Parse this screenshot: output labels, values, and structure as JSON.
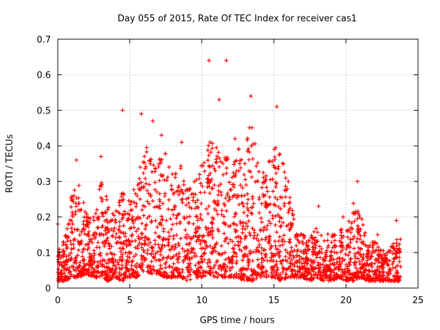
{
  "chart_data": {
    "type": "scatter",
    "title": "Day 055 of 2015, Rate Of TEC Index for receiver cas1",
    "xlabel": "GPS time / hours",
    "ylabel": "ROTI / TECUs",
    "xlim": [
      0,
      25
    ],
    "ylim": [
      0,
      0.7
    ],
    "xticks": [
      0,
      5,
      10,
      15,
      20,
      25
    ],
    "yticks": [
      0,
      0.1,
      0.2,
      0.3,
      0.4,
      0.5,
      0.6,
      0.7
    ],
    "xtick_labels": [
      "0",
      "5",
      "10",
      "15",
      "20",
      "25"
    ],
    "ytick_labels": [
      "0",
      "0.1",
      "0.2",
      "0.3",
      "0.4",
      "0.5",
      "0.6",
      "0.7"
    ],
    "grid": true,
    "marker": "+",
    "series_color": "#ff0000",
    "x_range_data": [
      0,
      23.8
    ],
    "notable_points": [
      {
        "x": 0.0,
        "y": 0.18
      },
      {
        "x": 1.3,
        "y": 0.36
      },
      {
        "x": 3.0,
        "y": 0.37
      },
      {
        "x": 4.5,
        "y": 0.5
      },
      {
        "x": 5.8,
        "y": 0.49
      },
      {
        "x": 6.6,
        "y": 0.47
      },
      {
        "x": 7.2,
        "y": 0.43
      },
      {
        "x": 8.6,
        "y": 0.41
      },
      {
        "x": 10.5,
        "y": 0.64
      },
      {
        "x": 11.2,
        "y": 0.53
      },
      {
        "x": 11.7,
        "y": 0.64
      },
      {
        "x": 12.3,
        "y": 0.42
      },
      {
        "x": 13.4,
        "y": 0.54
      },
      {
        "x": 15.2,
        "y": 0.51
      },
      {
        "x": 16.0,
        "y": 0.3
      },
      {
        "x": 18.1,
        "y": 0.23
      },
      {
        "x": 19.8,
        "y": 0.2
      },
      {
        "x": 20.8,
        "y": 0.3
      },
      {
        "x": 22.2,
        "y": 0.15
      },
      {
        "x": 23.5,
        "y": 0.19
      }
    ],
    "envelope_hours": [
      0,
      0.5,
      1,
      1.5,
      2,
      2.5,
      3,
      3.5,
      4,
      4.5,
      5,
      5.5,
      6,
      6.5,
      7,
      7.5,
      8,
      8.5,
      9,
      9.5,
      10,
      10.5,
      11,
      11.5,
      12,
      12.5,
      13,
      13.5,
      14,
      14.5,
      15,
      15.5,
      16,
      16.5,
      17,
      17.5,
      18,
      18.5,
      19,
      19.5,
      20,
      20.5,
      21,
      21.5,
      22,
      22.5,
      23,
      23.5
    ],
    "envelope_upper": [
      0.1,
      0.15,
      0.28,
      0.3,
      0.22,
      0.2,
      0.3,
      0.25,
      0.22,
      0.28,
      0.25,
      0.3,
      0.42,
      0.38,
      0.36,
      0.4,
      0.33,
      0.35,
      0.28,
      0.3,
      0.36,
      0.42,
      0.4,
      0.38,
      0.36,
      0.4,
      0.45,
      0.48,
      0.33,
      0.35,
      0.4,
      0.38,
      0.28,
      0.18,
      0.15,
      0.14,
      0.18,
      0.16,
      0.15,
      0.18,
      0.16,
      0.24,
      0.22,
      0.13,
      0.13,
      0.12,
      0.11,
      0.14
    ],
    "envelope_lower": [
      0.02,
      0.02,
      0.03,
      0.03,
      0.04,
      0.03,
      0.03,
      0.02,
      0.03,
      0.02,
      0.03,
      0.03,
      0.05,
      0.04,
      0.04,
      0.03,
      0.03,
      0.03,
      0.02,
      0.03,
      0.03,
      0.04,
      0.03,
      0.03,
      0.03,
      0.03,
      0.02,
      0.02,
      0.03,
      0.03,
      0.03,
      0.02,
      0.03,
      0.03,
      0.03,
      0.02,
      0.03,
      0.02,
      0.02,
      0.03,
      0.02,
      0.02,
      0.03,
      0.02,
      0.02,
      0.02,
      0.02,
      0.02
    ],
    "num_points_approx": 2600
  }
}
